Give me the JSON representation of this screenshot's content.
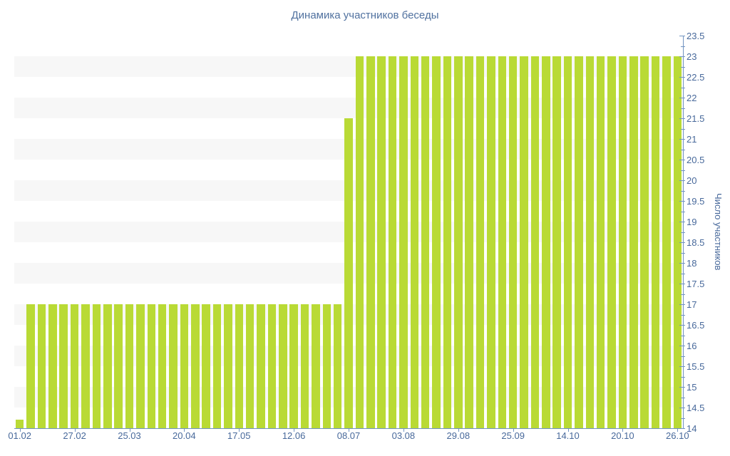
{
  "chart_data": {
    "type": "bar",
    "title": "Динамика участников беседы",
    "xlabel": "",
    "ylabel": "Число участников",
    "ylim": [
      14,
      23.5
    ],
    "y_major_step": 0.5,
    "y_minor_step": 0.25,
    "grid": "horizontal-stripes",
    "legend": "none",
    "y_tick_labels_top_to_bottom": [
      "23.5",
      "23",
      "22.5",
      "22",
      "21.5",
      "21",
      "20.5",
      "20",
      "19.5",
      "19",
      "18.5",
      "18",
      "17.5",
      "17",
      "16.5",
      "16",
      "15.5",
      "15",
      "14.5",
      "14"
    ],
    "x_tick_labels": [
      "01.02",
      "27.02",
      "25.03",
      "20.04",
      "17.05",
      "12.06",
      "08.07",
      "03.08",
      "29.08",
      "25.09",
      "14.10",
      "20.10",
      "26.10"
    ],
    "x_tick_every": 5,
    "values": [
      14,
      17,
      17,
      17,
      17,
      17,
      17,
      17,
      17,
      17,
      17,
      17,
      17,
      17,
      17,
      17,
      17,
      17,
      17,
      17,
      17,
      17,
      17,
      17,
      17,
      17,
      17,
      17,
      17,
      17,
      21.5,
      23,
      23,
      23,
      23,
      23,
      23,
      23,
      23,
      23,
      23,
      23,
      23,
      23,
      23,
      23,
      23,
      23,
      23,
      23,
      23,
      23,
      23,
      23,
      23,
      23,
      23,
      23,
      23,
      23,
      23
    ],
    "colors": {
      "bar": "#b9da35",
      "stripe": "#f7f7f7",
      "axis_line": "#7193c1",
      "label_text": "#48699b",
      "title_text": "#50719f",
      "background": "#ffffff"
    }
  }
}
